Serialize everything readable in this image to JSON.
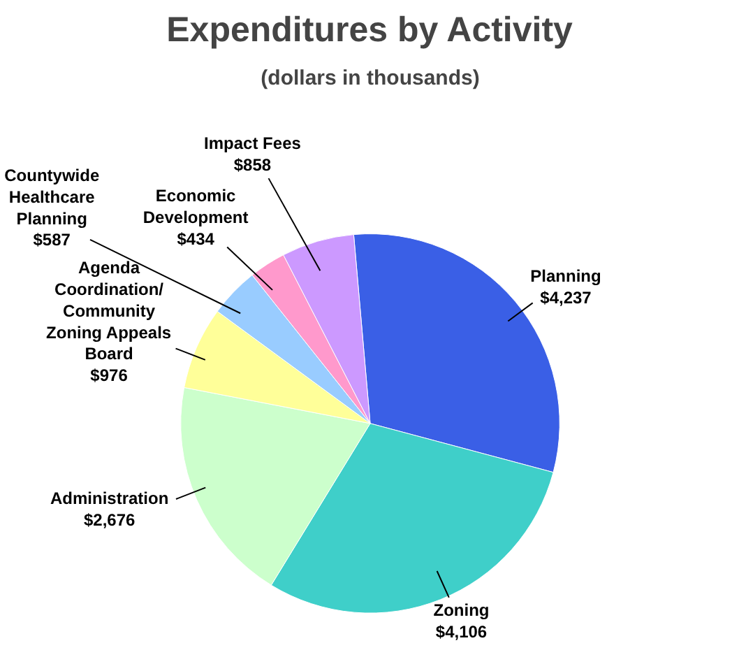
{
  "chart_data": {
    "type": "pie",
    "title": "Expenditures by Activity",
    "subtitle": "(dollars in thousands)",
    "categories": [
      "Planning",
      "Zoning",
      "Administration",
      "Agenda Coordination/ Community Zoning Appeals Board",
      "Countywide Healthcare Planning",
      "Economic Development",
      "Impact Fees"
    ],
    "values": [
      4237,
      4106,
      2676,
      976,
      587,
      434,
      858
    ],
    "value_labels": [
      "$4,237",
      "$4,106",
      "$2,676",
      "$976",
      "$587",
      "$434",
      "$858"
    ],
    "colors": [
      "#3a5fe6",
      "#3fcfc9",
      "#ccffcc",
      "#ffff99",
      "#99ccff",
      "#ff99cc",
      "#cc99ff"
    ],
    "legend": false
  }
}
